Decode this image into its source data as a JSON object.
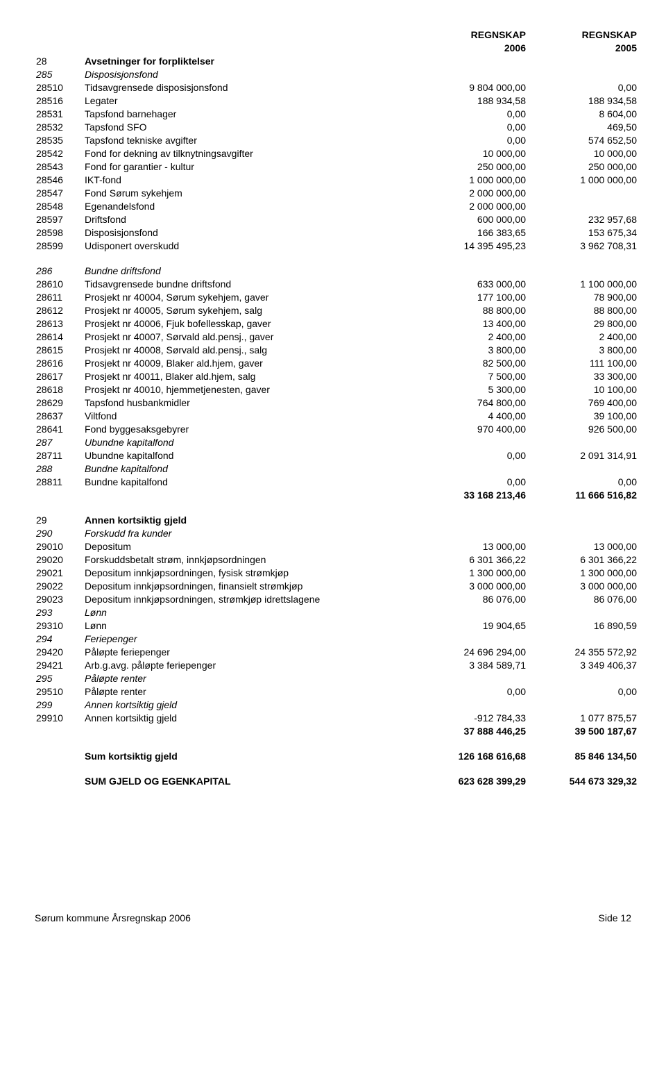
{
  "header": {
    "col1": "REGNSKAP",
    "col2": "REGNSKAP",
    "year1": "2006",
    "year2": "2005"
  },
  "rows": [
    {
      "code": "28",
      "desc": "Avsetninger for forpliktelser",
      "v1": "",
      "v2": "",
      "bold": true
    },
    {
      "code": "285",
      "desc": "Disposisjonsfond",
      "v1": "",
      "v2": "",
      "italic": true
    },
    {
      "code": "28510",
      "desc": "Tidsavgrensede disposisjonsfond",
      "v1": "9 804 000,00",
      "v2": "0,00"
    },
    {
      "code": "28516",
      "desc": "Legater",
      "v1": "188 934,58",
      "v2": "188 934,58"
    },
    {
      "code": "28531",
      "desc": "Tapsfond barnehager",
      "v1": "0,00",
      "v2": "8 604,00"
    },
    {
      "code": "28532",
      "desc": "Tapsfond SFO",
      "v1": "0,00",
      "v2": "469,50"
    },
    {
      "code": "28535",
      "desc": "Tapsfond tekniske avgifter",
      "v1": "0,00",
      "v2": "574 652,50"
    },
    {
      "code": "28542",
      "desc": "Fond for dekning av tilknytningsavgifter",
      "v1": "10 000,00",
      "v2": "10 000,00"
    },
    {
      "code": "28543",
      "desc": "Fond for garantier - kultur",
      "v1": "250 000,00",
      "v2": "250 000,00"
    },
    {
      "code": "28546",
      "desc": "IKT-fond",
      "v1": "1 000 000,00",
      "v2": "1 000 000,00"
    },
    {
      "code": "28547",
      "desc": "Fond Sørum sykehjem",
      "v1": "2 000 000,00",
      "v2": ""
    },
    {
      "code": "28548",
      "desc": "Egenandelsfond",
      "v1": "2 000 000,00",
      "v2": ""
    },
    {
      "code": "28597",
      "desc": "Driftsfond",
      "v1": "600 000,00",
      "v2": "232 957,68"
    },
    {
      "code": "28598",
      "desc": "Disposisjonsfond",
      "v1": "166 383,65",
      "v2": "153 675,34"
    },
    {
      "code": "28599",
      "desc": "Udisponert overskudd",
      "v1": "14 395 495,23",
      "v2": "3 962 708,31"
    },
    {
      "spacer": true
    },
    {
      "code": "286",
      "desc": "Bundne driftsfond",
      "v1": "",
      "v2": "",
      "italic": true
    },
    {
      "code": "28610",
      "desc": "Tidsavgrensede bundne driftsfond",
      "v1": "633 000,00",
      "v2": "1 100 000,00"
    },
    {
      "code": "28611",
      "desc": "Prosjekt nr 40004, Sørum sykehjem, gaver",
      "v1": "177 100,00",
      "v2": "78 900,00"
    },
    {
      "code": "28612",
      "desc": "Prosjekt nr 40005, Sørum sykehjem, salg",
      "v1": "88 800,00",
      "v2": "88 800,00"
    },
    {
      "code": "28613",
      "desc": "Prosjekt nr 40006, Fjuk bofellesskap, gaver",
      "v1": "13 400,00",
      "v2": "29 800,00"
    },
    {
      "code": "28614",
      "desc": "Prosjekt nr 40007, Sørvald ald.pensj., gaver",
      "v1": "2 400,00",
      "v2": "2 400,00"
    },
    {
      "code": "28615",
      "desc": "Prosjekt nr 40008, Sørvald ald.pensj., salg",
      "v1": "3 800,00",
      "v2": "3 800,00"
    },
    {
      "code": "28616",
      "desc": "Prosjekt nr 40009, Blaker ald.hjem, gaver",
      "v1": "82 500,00",
      "v2": "111 100,00"
    },
    {
      "code": "28617",
      "desc": "Prosjekt nr 40011, Blaker ald.hjem, salg",
      "v1": "7 500,00",
      "v2": "33 300,00"
    },
    {
      "code": "28618",
      "desc": "Prosjekt nr 40010, hjemmetjenesten, gaver",
      "v1": "5 300,00",
      "v2": "10 100,00"
    },
    {
      "code": "28629",
      "desc": "Tapsfond husbankmidler",
      "v1": "764 800,00",
      "v2": "769 400,00"
    },
    {
      "code": "28637",
      "desc": "Viltfond",
      "v1": "4 400,00",
      "v2": "39 100,00"
    },
    {
      "code": "28641",
      "desc": "Fond byggesaksgebyrer",
      "v1": "970 400,00",
      "v2": "926 500,00"
    },
    {
      "code": "287",
      "desc": "Ubundne kapitalfond",
      "v1": "",
      "v2": "",
      "italic": true
    },
    {
      "code": "28711",
      "desc": "Ubundne kapitalfond",
      "v1": "0,00",
      "v2": "2 091 314,91"
    },
    {
      "code": "288",
      "desc": "Bundne kapitalfond",
      "v1": "",
      "v2": "",
      "italic": true
    },
    {
      "code": "28811",
      "desc": "Bundne kapitalfond",
      "v1": "0,00",
      "v2": "0,00"
    },
    {
      "code": "",
      "desc": "",
      "v1": "33 168 213,46",
      "v2": "11 666 516,82",
      "bold": true
    },
    {
      "spacer": true
    },
    {
      "code": "29",
      "desc": "Annen kortsiktig gjeld",
      "v1": "",
      "v2": "",
      "bold": true
    },
    {
      "code": "290",
      "desc": "Forskudd fra kunder",
      "v1": "",
      "v2": "",
      "italic": true
    },
    {
      "code": "29010",
      "desc": "Depositum",
      "v1": "13 000,00",
      "v2": "13 000,00"
    },
    {
      "code": "29020",
      "desc": "Forskuddsbetalt strøm, innkjøpsordningen",
      "v1": "6 301 366,22",
      "v2": "6 301 366,22"
    },
    {
      "code": "29021",
      "desc": "Depositum innkjøpsordningen, fysisk strømkjøp",
      "v1": "1 300 000,00",
      "v2": "1 300 000,00"
    },
    {
      "code": "29022",
      "desc": "Depositum innkjøpsordningen, finansielt strømkjøp",
      "v1": "3 000 000,00",
      "v2": "3 000 000,00"
    },
    {
      "code": "29023",
      "desc": "Depositum innkjøpsordningen, strømkjøp idrettslagene",
      "v1": "86 076,00",
      "v2": "86 076,00"
    },
    {
      "code": "293",
      "desc": "Lønn",
      "v1": "",
      "v2": "",
      "italic": true
    },
    {
      "code": "29310",
      "desc": "Lønn",
      "v1": "19 904,65",
      "v2": "16 890,59"
    },
    {
      "code": "294",
      "desc": "Feriepenger",
      "v1": "",
      "v2": "",
      "italic": true
    },
    {
      "code": "29420",
      "desc": "Påløpte feriepenger",
      "v1": "24 696 294,00",
      "v2": "24 355 572,92"
    },
    {
      "code": "29421",
      "desc": "Arb.g.avg. påløpte feriepenger",
      "v1": "3 384 589,71",
      "v2": "3 349 406,37"
    },
    {
      "code": "295",
      "desc": "Påløpte renter",
      "v1": "",
      "v2": "",
      "italic": true
    },
    {
      "code": "29510",
      "desc": "Påløpte renter",
      "v1": "0,00",
      "v2": "0,00"
    },
    {
      "code": "299",
      "desc": "Annen kortsiktig gjeld",
      "v1": "",
      "v2": "",
      "italic": true
    },
    {
      "code": "29910",
      "desc": "Annen kortsiktig gjeld",
      "v1": "-912 784,33",
      "v2": "1 077 875,57"
    },
    {
      "code": "",
      "desc": "",
      "v1": "37 888 446,25",
      "v2": "39 500 187,67",
      "bold": true
    },
    {
      "spacer": true
    },
    {
      "code": "",
      "desc": "Sum kortsiktig gjeld",
      "v1": "126 168 616,68",
      "v2": "85 846 134,50",
      "bold": true
    },
    {
      "spacer": true
    },
    {
      "code": "",
      "desc": "SUM GJELD OG EGENKAPITAL",
      "v1": "623 628 399,29",
      "v2": "544 673 329,32",
      "bold": true
    }
  ],
  "footer": {
    "left": "Sørum kommune Årsregnskap 2006",
    "right": "Side 12"
  }
}
